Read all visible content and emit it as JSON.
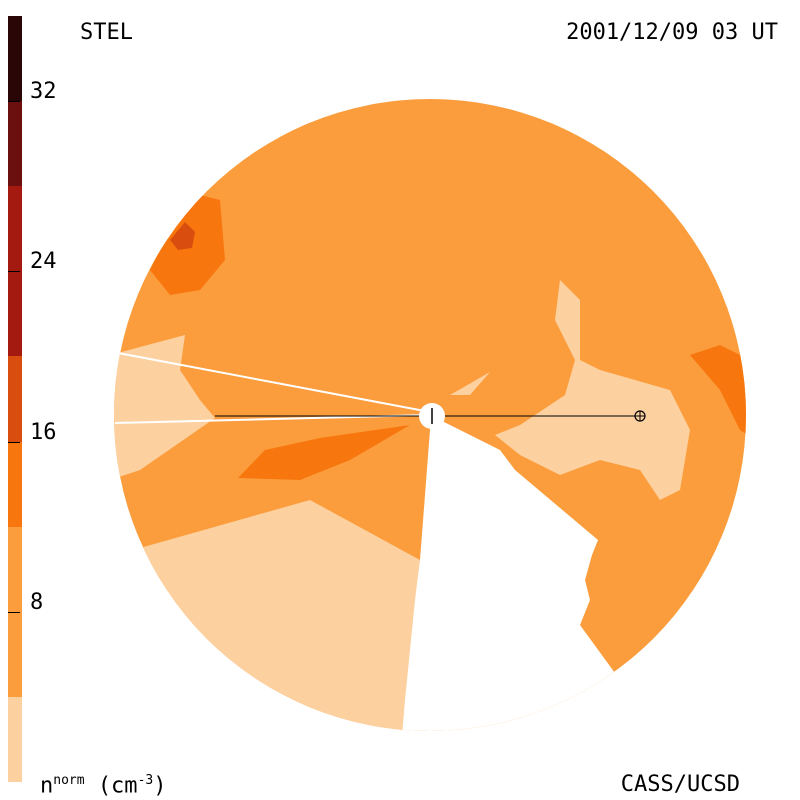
{
  "header": {
    "left_label": "STEL",
    "right_label": "2001/12/09 03 UT"
  },
  "footer": {
    "units_base": "n",
    "units_sup": "norm",
    "units_suffix": "(cm",
    "units_exp": "-3",
    "units_close": ")",
    "credit": "CASS/UCSD"
  },
  "colorbar": {
    "ticks": [
      "32",
      "24",
      "16",
      "8"
    ],
    "tick_values": [
      32,
      24,
      16,
      8
    ],
    "range": [
      0,
      36
    ],
    "segments": [
      {
        "from": 0,
        "to": 4,
        "color": "#fdd09f"
      },
      {
        "from": 4,
        "to": 12,
        "color": "#fb9d3c"
      },
      {
        "from": 12,
        "to": 16,
        "color": "#f8760e"
      },
      {
        "from": 16,
        "to": 20,
        "color": "#d94e0e"
      },
      {
        "from": 20,
        "to": 28,
        "color": "#a51a10"
      },
      {
        "from": 28,
        "to": 32,
        "color": "#6b0f0f"
      },
      {
        "from": 32,
        "to": 36,
        "color": "#2b0606"
      }
    ]
  },
  "chart_data": {
    "type": "heatmap",
    "title": "",
    "colorbar_label": "n norm (cm-3)",
    "colorbar_ticks": [
      8,
      16,
      24,
      32
    ],
    "levels": [
      {
        "range": [
          0,
          4
        ],
        "color": "#fdd09f"
      },
      {
        "range": [
          4,
          12
        ],
        "color": "#fb9d3c"
      },
      {
        "range": [
          12,
          16
        ],
        "color": "#f8760e"
      },
      {
        "range": [
          16,
          20
        ],
        "color": "#d94e0e"
      },
      {
        "range": [
          20,
          28
        ],
        "color": "#a51a10"
      }
    ]
  },
  "colors": {
    "base": "#fb9d3c",
    "low": "#fdd09f",
    "mid": "#f8760e",
    "high": "#d94e0e"
  }
}
